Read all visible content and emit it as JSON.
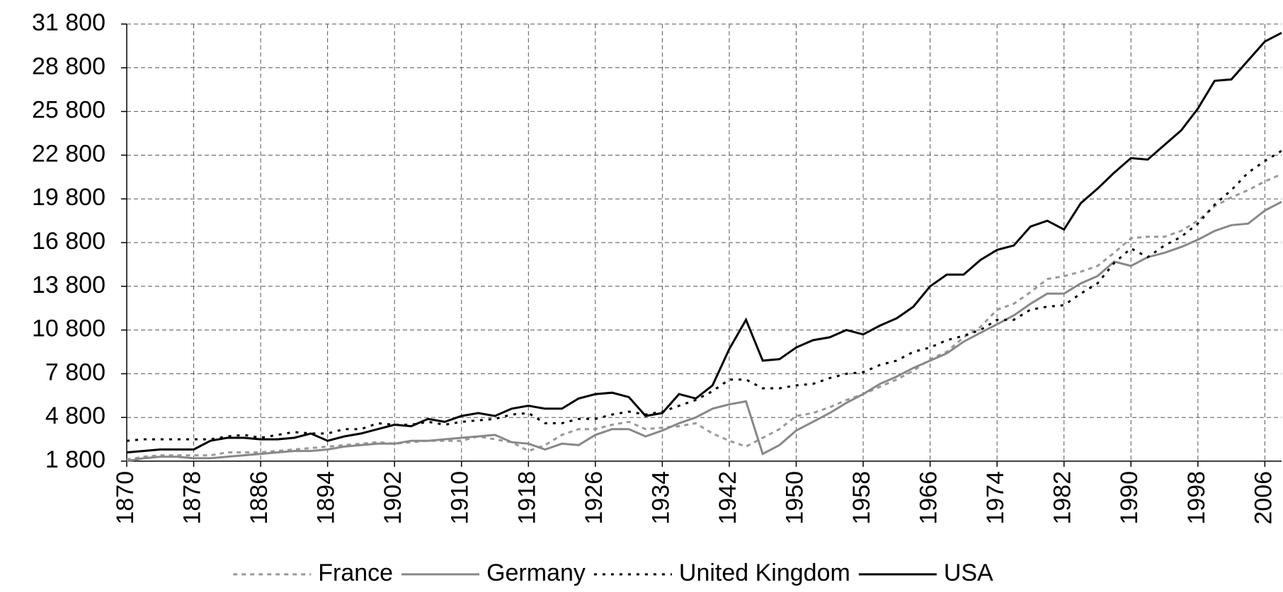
{
  "chart_data": {
    "type": "line",
    "x": [
      1870,
      1872,
      1874,
      1876,
      1878,
      1880,
      1882,
      1884,
      1886,
      1888,
      1890,
      1892,
      1894,
      1896,
      1898,
      1900,
      1902,
      1904,
      1906,
      1908,
      1910,
      1912,
      1914,
      1916,
      1918,
      1920,
      1922,
      1924,
      1926,
      1928,
      1930,
      1932,
      1934,
      1936,
      1938,
      1940,
      1942,
      1944,
      1946,
      1948,
      1950,
      1952,
      1954,
      1956,
      1958,
      1960,
      1962,
      1964,
      1966,
      1968,
      1970,
      1972,
      1974,
      1976,
      1978,
      1980,
      1982,
      1984,
      1986,
      1988,
      1990,
      1992,
      1994,
      1996,
      1998,
      2000,
      2002,
      2004,
      2006,
      2008
    ],
    "series": [
      {
        "name": "France",
        "color": "#999999",
        "style": "dashed",
        "values": [
          1900,
          2100,
          2200,
          2200,
          2200,
          2200,
          2400,
          2400,
          2400,
          2500,
          2600,
          2700,
          2800,
          2900,
          3000,
          3100,
          3000,
          3100,
          3200,
          3200,
          3200,
          3500,
          3300,
          3100,
          2500,
          2900,
          3600,
          4000,
          4000,
          4300,
          4500,
          4000,
          4100,
          4200,
          4400,
          3700,
          3200,
          2800,
          3400,
          4000,
          4900,
          5100,
          5500,
          6000,
          6400,
          6900,
          7400,
          8000,
          8800,
          9300,
          10300,
          11000,
          12200,
          12600,
          13400,
          14300,
          14500,
          14800,
          15200,
          16100,
          17100,
          17200,
          17200,
          17600,
          18300,
          19300,
          19900,
          20400,
          21000,
          21500
        ]
      },
      {
        "name": "Germany",
        "color": "#888888",
        "style": "solid",
        "values": [
          1800,
          2000,
          2100,
          2100,
          2000,
          2000,
          2100,
          2200,
          2300,
          2400,
          2500,
          2500,
          2600,
          2800,
          2900,
          3000,
          3000,
          3200,
          3200,
          3300,
          3400,
          3500,
          3600,
          3100,
          3000,
          2600,
          3000,
          2900,
          3600,
          4000,
          4000,
          3500,
          3900,
          4400,
          4800,
          5400,
          5700,
          5900,
          2300,
          2900,
          3900,
          4500,
          5100,
          5800,
          6400,
          7100,
          7600,
          8200,
          8700,
          9200,
          10000,
          10600,
          11200,
          11800,
          12600,
          13300,
          13300,
          14000,
          14500,
          15500,
          15200,
          15800,
          16100,
          16500,
          17000,
          17600,
          18000,
          18100,
          19000,
          19600
        ]
      },
      {
        "name": "United Kingdom",
        "color": "#000000",
        "style": "dotted",
        "values": [
          3200,
          3300,
          3300,
          3300,
          3300,
          3300,
          3500,
          3600,
          3400,
          3600,
          3800,
          3700,
          3700,
          4000,
          4000,
          4400,
          4300,
          4300,
          4500,
          4300,
          4500,
          4600,
          4700,
          5000,
          5100,
          4400,
          4400,
          4700,
          4700,
          5000,
          5200,
          5000,
          5200,
          5600,
          6000,
          6600,
          7400,
          7400,
          6800,
          6800,
          7000,
          7100,
          7500,
          7800,
          7900,
          8400,
          8700,
          9300,
          9600,
          10100,
          10400,
          10800,
          11500,
          11500,
          12200,
          12400,
          12500,
          13300,
          14000,
          15400,
          16400,
          15800,
          16600,
          17200,
          18100,
          19400,
          20400,
          21600,
          22400,
          23100
        ]
      },
      {
        "name": "USA",
        "color": "#000000",
        "style": "solid",
        "values": [
          2400,
          2500,
          2600,
          2600,
          2600,
          3200,
          3400,
          3400,
          3300,
          3300,
          3400,
          3700,
          3200,
          3500,
          3700,
          4000,
          4300,
          4200,
          4700,
          4500,
          4900,
          5100,
          4900,
          5400,
          5600,
          5400,
          5400,
          6100,
          6400,
          6500,
          6200,
          4900,
          5100,
          6400,
          6100,
          7000,
          9500,
          11500,
          8700,
          8800,
          9600,
          10100,
          10300,
          10800,
          10500,
          11100,
          11600,
          12400,
          13800,
          14600,
          14600,
          15600,
          16300,
          16600,
          17900,
          18300,
          17700,
          19500,
          20500,
          21600,
          22600,
          22500,
          23500,
          24500,
          26000,
          27900,
          28000,
          29300,
          30600,
          31200
        ]
      }
    ],
    "xlim": [
      1870,
      2008
    ],
    "xticks": [
      1870,
      1878,
      1886,
      1894,
      1902,
      1910,
      1918,
      1926,
      1934,
      1942,
      1950,
      1958,
      1966,
      1974,
      1982,
      1990,
      1998,
      2006
    ],
    "ylim": [
      1800,
      31800
    ],
    "yticks": [
      {
        "value": 1800,
        "label": "1 800"
      },
      {
        "value": 4800,
        "label": "4 800"
      },
      {
        "value": 7800,
        "label": "7 800"
      },
      {
        "value": 10800,
        "label": "10 800"
      },
      {
        "value": 13800,
        "label": "13 800"
      },
      {
        "value": 16800,
        "label": "16 800"
      },
      {
        "value": 19800,
        "label": "19 800"
      },
      {
        "value": 22800,
        "label": "22 800"
      },
      {
        "value": 25800,
        "label": "25 800"
      },
      {
        "value": 28800,
        "label": "28 800"
      },
      {
        "value": 31800,
        "label": "31 800"
      }
    ],
    "grid": true,
    "legend": "bottom"
  }
}
